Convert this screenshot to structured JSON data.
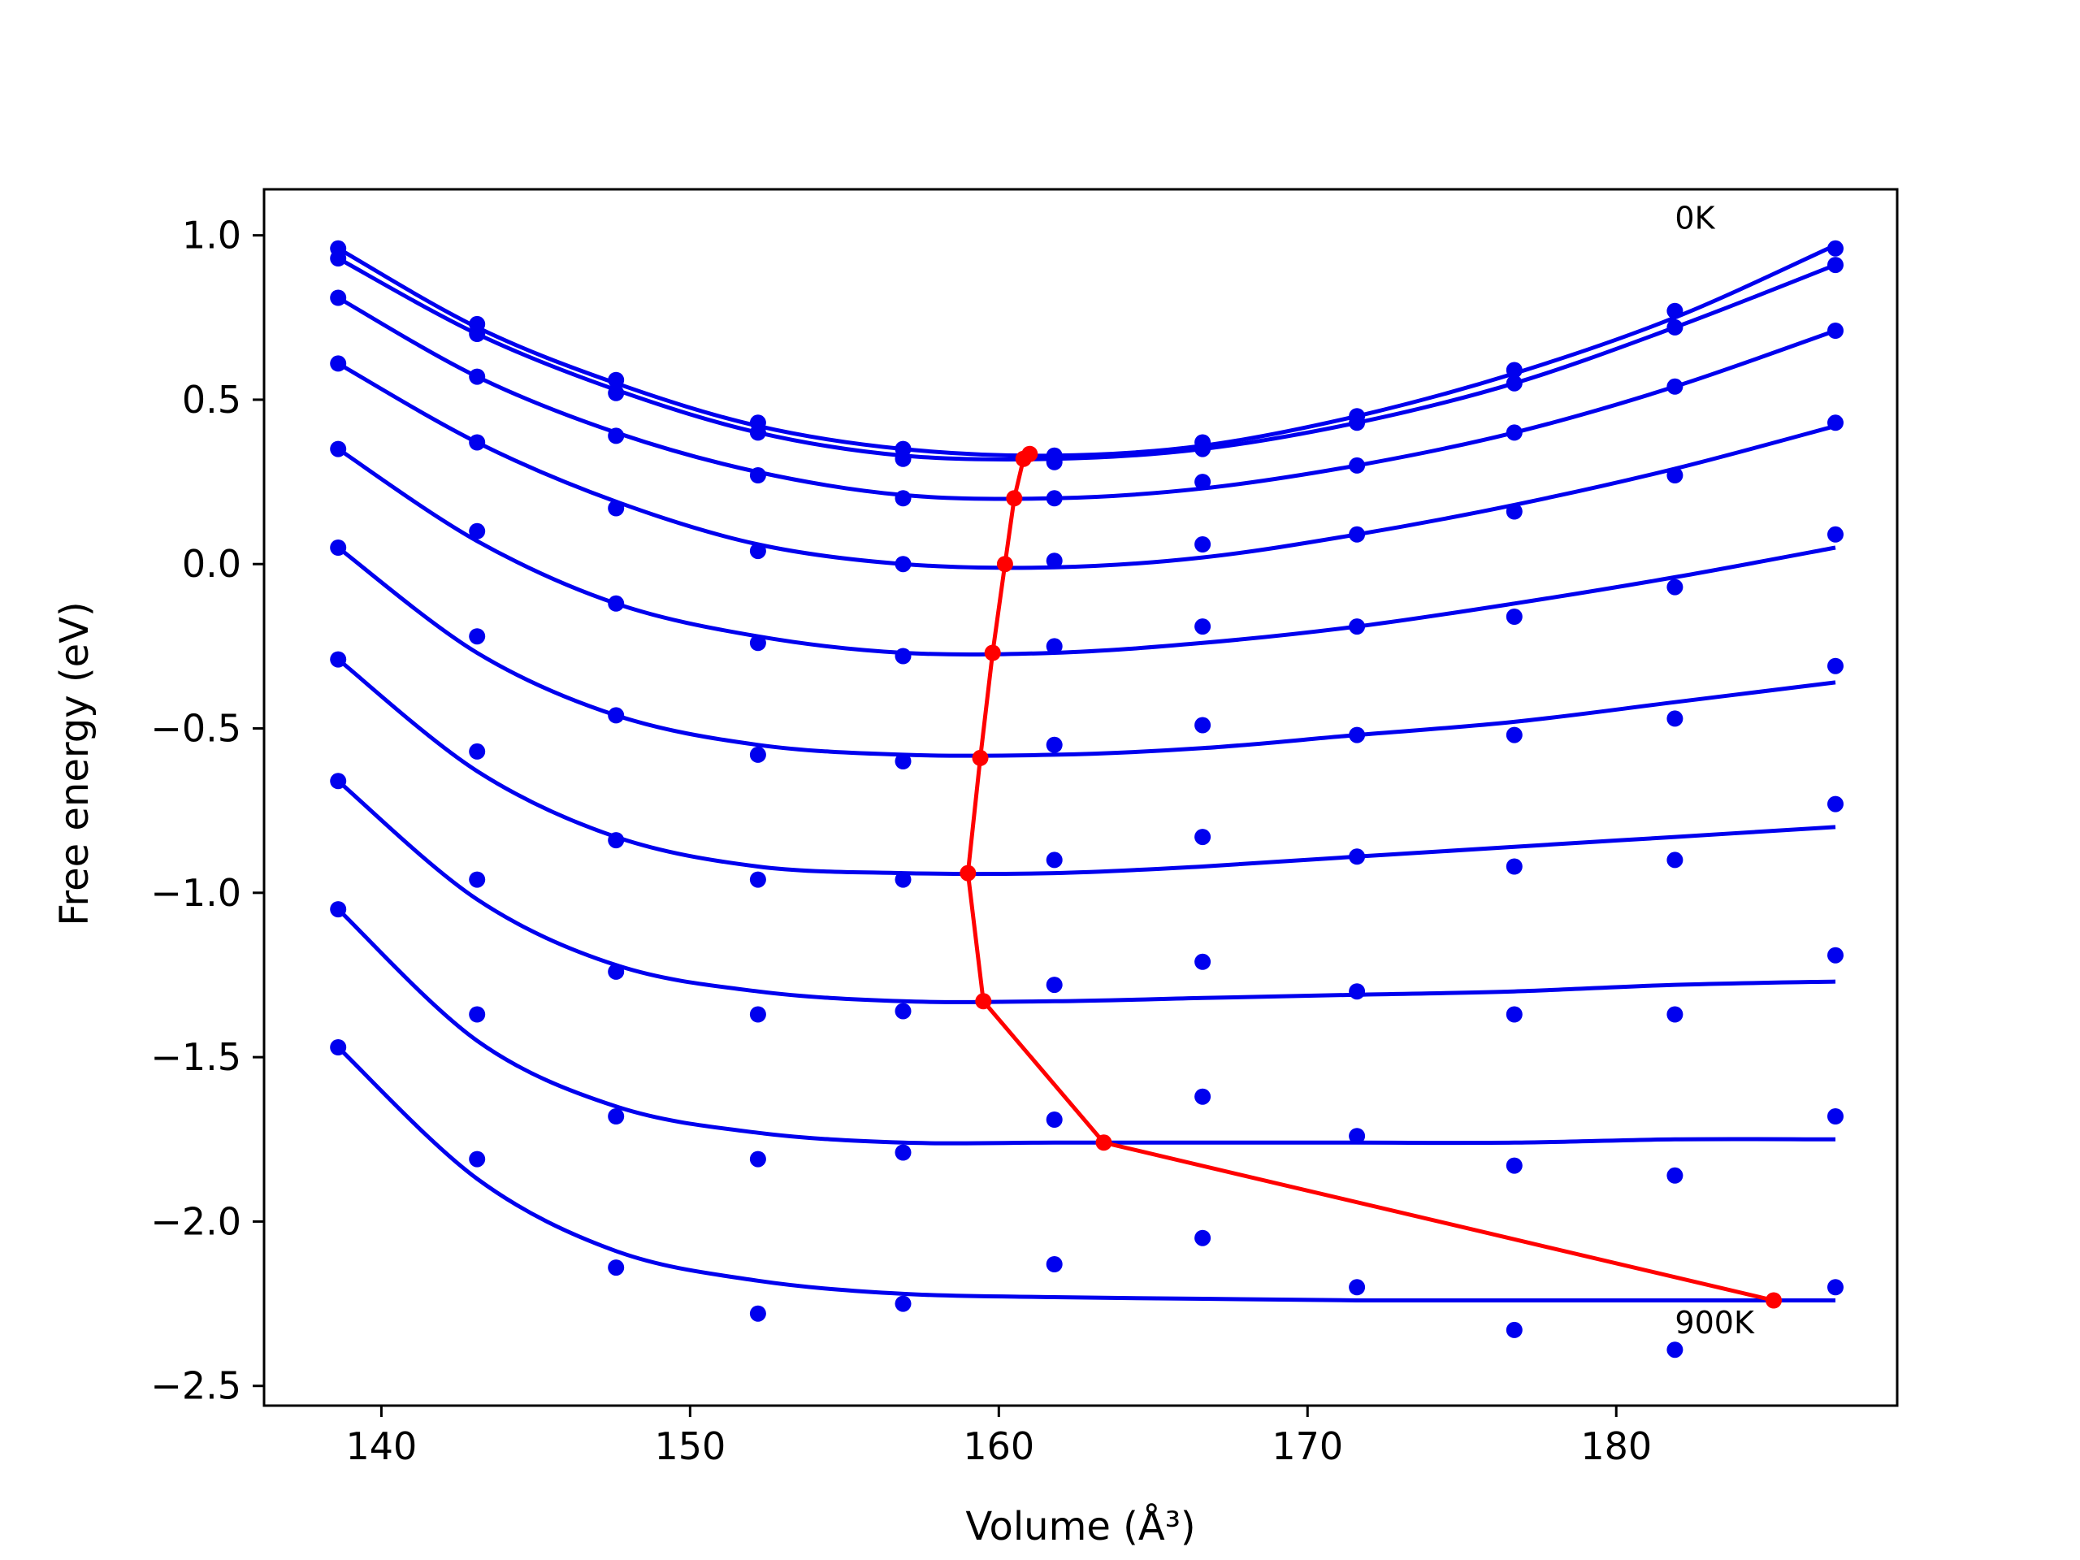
{
  "chart_data": {
    "type": "scatter",
    "title": "",
    "xlabel": "Volume (Å³)",
    "ylabel": "Free energy (eV)",
    "xlim": [
      136.2,
      189.1
    ],
    "ylim": [
      -2.56,
      1.14
    ],
    "xticks": [
      140,
      150,
      160,
      170,
      180
    ],
    "yticks": [
      1.0,
      0.5,
      0.0,
      -0.5,
      -1.0,
      -1.5,
      -2.0,
      -2.5
    ],
    "xtick_labels": [
      "140",
      "150",
      "160",
      "170",
      "180"
    ],
    "ytick_labels": [
      "1.0",
      "0.5",
      "0.0",
      "−0.5",
      "−1.0",
      "−1.5",
      "−2.0",
      "−2.5"
    ],
    "grid": false,
    "legend": "none",
    "colors": {
      "points": "#0000ee",
      "fits": "#0000ee",
      "minima": "#ff0000"
    },
    "annotations": [
      {
        "text": "0K",
        "x": 181.9,
        "y": 1.02
      },
      {
        "text": "900K",
        "x": 181.9,
        "y": -2.34
      }
    ],
    "volumes": [
      138.6,
      143.1,
      147.6,
      152.2,
      156.9,
      161.8,
      166.6,
      171.6,
      176.7,
      181.9,
      187.1
    ],
    "series": [
      {
        "points": [
          0.96,
          0.73,
          0.56,
          0.43,
          0.35,
          0.33,
          0.37,
          0.45,
          0.59,
          0.77,
          0.96
        ],
        "fit": [
          0.96,
          0.72,
          0.55,
          0.42,
          0.35,
          0.33,
          0.36,
          0.45,
          0.58,
          0.75,
          0.97
        ],
        "min": [
          161.0,
          0.335
        ]
      },
      {
        "points": [
          0.93,
          0.7,
          0.52,
          0.4,
          0.32,
          0.31,
          0.35,
          0.43,
          0.55,
          0.72,
          0.91
        ],
        "fit": [
          0.93,
          0.7,
          0.53,
          0.4,
          0.33,
          0.32,
          0.35,
          0.43,
          0.55,
          0.72,
          0.91
        ],
        "min": [
          160.8,
          0.32
        ]
      },
      {
        "points": [
          0.81,
          0.57,
          0.39,
          0.27,
          0.2,
          0.2,
          0.25,
          0.3,
          0.4,
          0.54,
          0.71
        ],
        "fit": [
          0.81,
          0.57,
          0.4,
          0.28,
          0.21,
          0.2,
          0.23,
          0.3,
          0.4,
          0.54,
          0.71
        ],
        "min": [
          160.5,
          0.2
        ]
      },
      {
        "points": [
          0.61,
          0.37,
          0.17,
          0.04,
          0.0,
          0.01,
          0.06,
          0.09,
          0.16,
          0.27,
          0.43
        ],
        "fit": [
          0.61,
          0.37,
          0.19,
          0.06,
          0.0,
          -0.01,
          0.02,
          0.09,
          0.18,
          0.29,
          0.42
        ],
        "min": [
          160.2,
          0.0
        ]
      },
      {
        "points": [
          0.35,
          0.1,
          -0.12,
          -0.24,
          -0.28,
          -0.25,
          -0.19,
          -0.19,
          -0.16,
          -0.07,
          0.09
        ],
        "fit": [
          0.35,
          0.07,
          -0.12,
          -0.22,
          -0.27,
          -0.27,
          -0.24,
          -0.19,
          -0.12,
          -0.04,
          0.05
        ],
        "min": [
          159.8,
          -0.27
        ]
      },
      {
        "points": [
          0.05,
          -0.22,
          -0.46,
          -0.58,
          -0.6,
          -0.55,
          -0.49,
          -0.52,
          -0.52,
          -0.47,
          -0.31
        ],
        "fit": [
          0.05,
          -0.27,
          -0.46,
          -0.55,
          -0.58,
          -0.58,
          -0.56,
          -0.52,
          -0.48,
          -0.42,
          -0.36
        ],
        "min": [
          159.4,
          -0.59
        ]
      },
      {
        "points": [
          -0.29,
          -0.57,
          -0.84,
          -0.96,
          -0.96,
          -0.9,
          -0.83,
          -0.89,
          -0.92,
          -0.9,
          -0.73
        ],
        "fit": [
          -0.29,
          -0.63,
          -0.83,
          -0.92,
          -0.94,
          -0.94,
          -0.92,
          -0.89,
          -0.86,
          -0.83,
          -0.8
        ],
        "min": [
          159.0,
          -0.94
        ]
      },
      {
        "points": [
          -0.66,
          -0.96,
          -1.24,
          -1.37,
          -1.36,
          -1.28,
          -1.21,
          -1.3,
          -1.37,
          -1.37,
          -1.19
        ],
        "fit": [
          -0.66,
          -1.02,
          -1.22,
          -1.3,
          -1.33,
          -1.33,
          -1.32,
          -1.31,
          -1.3,
          -1.28,
          -1.27
        ],
        "min": [
          159.5,
          -1.33
        ]
      },
      {
        "points": [
          -1.05,
          -1.37,
          -1.68,
          -1.81,
          -1.79,
          -1.69,
          -1.62,
          -1.74,
          -1.83,
          -1.86,
          -1.68
        ],
        "fit": [
          -1.05,
          -1.45,
          -1.65,
          -1.73,
          -1.76,
          -1.76,
          -1.76,
          -1.76,
          -1.76,
          -1.75,
          -1.75
        ],
        "min": [
          163.4,
          -1.76
        ]
      },
      {
        "points": [
          -1.47,
          -1.81,
          -2.14,
          -2.28,
          -2.25,
          -2.13,
          -2.05,
          -2.2,
          -2.33,
          -2.39,
          -2.2
        ],
        "fit": [
          -1.47,
          -1.87,
          -2.09,
          -2.18,
          -2.22,
          -2.23,
          -2.235,
          -2.24,
          -2.24,
          -2.24,
          -2.24
        ],
        "min": [
          185.1,
          -2.24
        ]
      }
    ]
  }
}
